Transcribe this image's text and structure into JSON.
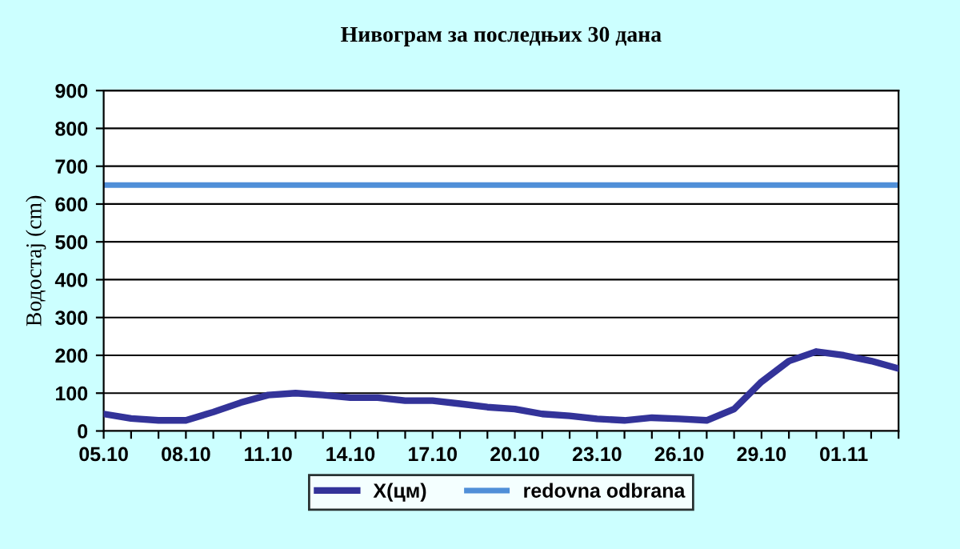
{
  "chart_data": {
    "type": "line",
    "title": "Нивограм за последњих 30 дана",
    "ylabel": "Водостај (cm)",
    "categories": [
      "05.10",
      null,
      null,
      "08.10",
      null,
      null,
      "11.10",
      null,
      null,
      "14.10",
      null,
      null,
      "17.10",
      null,
      null,
      "20.10",
      null,
      null,
      "23.10",
      null,
      null,
      "26.10",
      null,
      null,
      "29.10",
      null,
      null,
      "01.11",
      null,
      null
    ],
    "series": [
      {
        "name": "X(цм)",
        "color": "#333399",
        "values": [
          45,
          33,
          28,
          28,
          50,
          75,
          95,
          100,
          95,
          88,
          88,
          80,
          80,
          72,
          63,
          58,
          45,
          40,
          32,
          28,
          35,
          32,
          28,
          58,
          130,
          185,
          210,
          200,
          185,
          165
        ]
      }
    ],
    "ref_lines": [
      {
        "axis": "y",
        "value": 650,
        "label": "redovna odbrana",
        "color": "#4f8fd8"
      }
    ],
    "ylim": [
      0,
      900
    ],
    "yticks": [
      0,
      100,
      200,
      300,
      400,
      500,
      600,
      700,
      800,
      900
    ],
    "grid": "y",
    "legend": "bottom",
    "marker": "none",
    "line_style": "solid"
  }
}
